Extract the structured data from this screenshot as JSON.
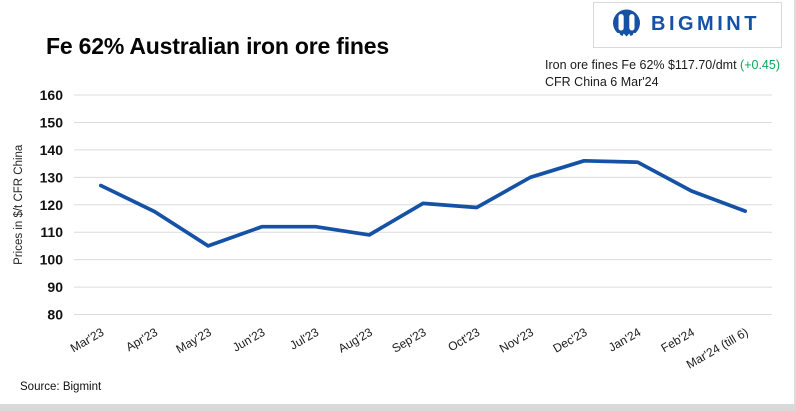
{
  "header": {
    "title": "Fe 62% Australian iron ore fines",
    "logo_text": "BIGMINT",
    "logo_color": "#1552a5"
  },
  "quote": {
    "line1": "Iron ore fines Fe 62% $117.70/dmt",
    "change": "(+0.45)",
    "change_color": "#12a35b",
    "line2": "CFR China 6 Mar'24"
  },
  "chart_data": {
    "type": "line",
    "title": "Fe 62% Australian iron ore fines",
    "categories": [
      "Mar'23",
      "Apr'23",
      "May'23",
      "Jun'23",
      "Jul'23",
      "Aug'23",
      "Sep'23",
      "Oct'23",
      "Nov'23",
      "Dec'23",
      "Jan'24",
      "Feb'24",
      "Mar'24 (till 6)"
    ],
    "values": [
      127,
      117.5,
      105,
      112,
      112,
      109,
      120.5,
      119,
      130,
      136,
      135.5,
      125,
      117.7
    ],
    "xlabel": "",
    "ylabel": "Prices in $/t CFR China",
    "ylim": [
      80,
      160
    ],
    "yticks": [
      80,
      90,
      100,
      110,
      120,
      130,
      140,
      150,
      160
    ],
    "grid": true,
    "legend": "none",
    "line_color": "#1552a5",
    "grid_color": "#dcdcdc",
    "x_label_rotation": -30
  },
  "footer": {
    "source": "Source: Bigmint"
  }
}
